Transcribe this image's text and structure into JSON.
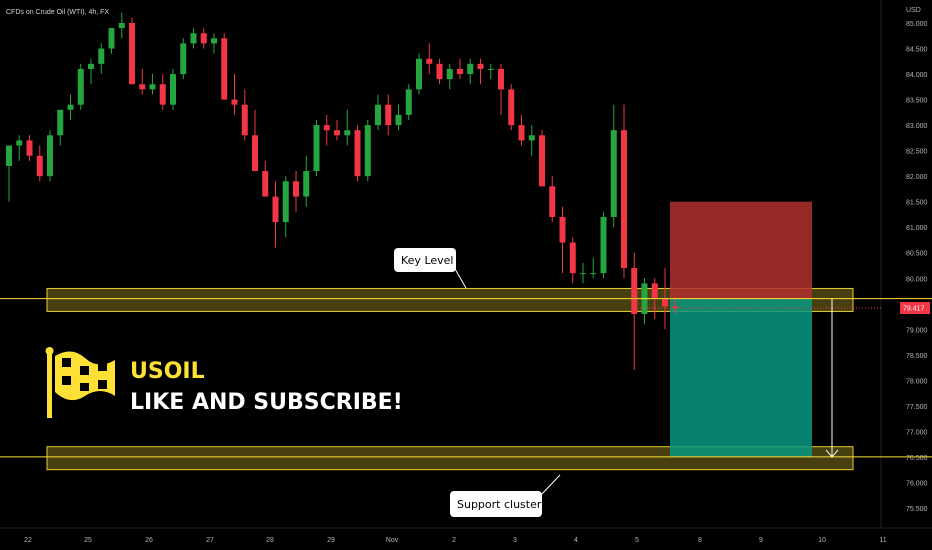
{
  "header": {
    "title": "CFDs on Crude Oil (WTI), 4h, FX"
  },
  "price_axis": {
    "currency": "USD",
    "ticks": [
      "85.000",
      "84.500",
      "84.000",
      "83.500",
      "83.000",
      "82.500",
      "82.000",
      "81.500",
      "81.000",
      "80.500",
      "80.000",
      "79.500",
      "79.000",
      "78.500",
      "78.000",
      "77.500",
      "77.000",
      "76.500",
      "76.000",
      "75.500"
    ]
  },
  "current_price": {
    "label": "79.417",
    "value": 79.417,
    "color": "#f23645"
  },
  "time_axis": {
    "ticks": [
      "22",
      "25",
      "26",
      "27",
      "28",
      "29",
      "Nov",
      "2",
      "3",
      "4",
      "5",
      "8",
      "9",
      "10",
      "11"
    ]
  },
  "annotations": {
    "key_level": "Key Level",
    "support": "Support cluster",
    "brand_title": "USOIL",
    "brand_sub": "LIKE AND SUBSCRIBE!"
  },
  "icons": {
    "brand": "checkered-flag-icon",
    "arrow": "arrow-down-icon"
  },
  "colors": {
    "up": "#089981",
    "up_body": "#26a641",
    "down": "#f23645",
    "zone": "#ffe135",
    "stop": "#b2302e",
    "target": "#089981"
  },
  "chart_data": {
    "type": "candlestick",
    "title": "CFDs on Crude Oil (WTI), 4h, FX",
    "ylim": [
      75.3,
      85.3
    ],
    "key_level_zone": [
      79.35,
      79.8
    ],
    "support_zone": [
      76.25,
      76.7
    ],
    "key_level_line": 79.6,
    "support_line": 76.5,
    "trade": {
      "entry": 79.6,
      "stop": 81.5,
      "target": 76.5
    },
    "candles": [
      [
        82.2,
        82.6,
        81.5,
        82.6
      ],
      [
        82.6,
        82.8,
        82.3,
        82.7
      ],
      [
        82.7,
        82.8,
        82.3,
        82.4
      ],
      [
        82.4,
        82.6,
        81.9,
        82.0
      ],
      [
        82.0,
        82.9,
        81.9,
        82.8
      ],
      [
        82.8,
        83.3,
        82.6,
        83.3
      ],
      [
        83.3,
        83.6,
        83.1,
        83.4
      ],
      [
        83.4,
        84.2,
        83.3,
        84.1
      ],
      [
        84.1,
        84.3,
        83.8,
        84.2
      ],
      [
        84.2,
        84.6,
        84.0,
        84.5
      ],
      [
        84.5,
        84.9,
        84.4,
        84.9
      ],
      [
        84.9,
        85.2,
        84.7,
        85.0
      ],
      [
        85.0,
        85.1,
        83.8,
        83.8
      ],
      [
        83.8,
        84.1,
        83.6,
        83.7
      ],
      [
        83.7,
        84.0,
        83.6,
        83.8
      ],
      [
        83.8,
        84.0,
        83.3,
        83.4
      ],
      [
        83.4,
        84.1,
        83.3,
        84.0
      ],
      [
        84.0,
        84.7,
        83.9,
        84.6
      ],
      [
        84.6,
        84.9,
        84.5,
        84.8
      ],
      [
        84.8,
        84.9,
        84.5,
        84.6
      ],
      [
        84.6,
        84.8,
        84.4,
        84.7
      ],
      [
        84.7,
        84.8,
        83.5,
        83.5
      ],
      [
        83.5,
        84.0,
        83.2,
        83.4
      ],
      [
        83.4,
        83.7,
        82.7,
        82.8
      ],
      [
        82.8,
        83.3,
        82.1,
        82.1
      ],
      [
        82.1,
        82.3,
        81.6,
        81.6
      ],
      [
        81.6,
        81.9,
        80.6,
        81.1
      ],
      [
        81.1,
        82.0,
        80.8,
        81.9
      ],
      [
        81.9,
        82.1,
        81.3,
        81.6
      ],
      [
        81.6,
        82.4,
        81.4,
        82.1
      ],
      [
        82.1,
        83.1,
        82.0,
        83.0
      ],
      [
        83.0,
        83.2,
        82.6,
        82.9
      ],
      [
        82.9,
        83.1,
        82.7,
        82.8
      ],
      [
        82.8,
        83.3,
        82.6,
        82.9
      ],
      [
        82.9,
        83.0,
        81.9,
        82.0
      ],
      [
        82.0,
        83.1,
        81.9,
        83.0
      ],
      [
        83.0,
        83.6,
        82.9,
        83.4
      ],
      [
        83.4,
        83.6,
        82.8,
        83.0
      ],
      [
        83.0,
        83.4,
        82.9,
        83.2
      ],
      [
        83.2,
        83.8,
        83.1,
        83.7
      ],
      [
        83.7,
        84.4,
        83.6,
        84.3
      ],
      [
        84.3,
        84.6,
        84.0,
        84.2
      ],
      [
        84.2,
        84.3,
        83.8,
        83.9
      ],
      [
        83.9,
        84.2,
        83.7,
        84.1
      ],
      [
        84.1,
        84.3,
        83.9,
        84.0
      ],
      [
        84.0,
        84.3,
        83.8,
        84.2
      ],
      [
        84.2,
        84.3,
        83.8,
        84.1
      ],
      [
        84.1,
        84.2,
        83.9,
        84.1
      ],
      [
        84.1,
        84.2,
        83.2,
        83.7
      ],
      [
        83.7,
        83.8,
        82.9,
        83.0
      ],
      [
        83.0,
        83.2,
        82.6,
        82.7
      ],
      [
        82.7,
        83.0,
        82.4,
        82.8
      ],
      [
        82.8,
        82.9,
        81.8,
        81.8
      ],
      [
        81.8,
        82.0,
        81.1,
        81.2
      ],
      [
        81.2,
        81.4,
        80.1,
        80.7
      ],
      [
        80.7,
        80.8,
        79.9,
        80.1
      ],
      [
        80.1,
        80.3,
        79.9,
        80.1
      ],
      [
        80.1,
        80.4,
        80.0,
        80.1
      ],
      [
        80.1,
        81.3,
        80.0,
        81.2
      ],
      [
        81.2,
        83.4,
        81.0,
        82.9
      ],
      [
        82.9,
        83.4,
        80.0,
        80.2
      ],
      [
        80.2,
        80.5,
        78.2,
        79.3
      ],
      [
        79.3,
        80.0,
        79.1,
        79.9
      ],
      [
        79.9,
        80.0,
        79.2,
        79.6
      ],
      [
        79.6,
        80.2,
        79.0,
        79.45
      ],
      [
        79.45,
        79.6,
        79.3,
        79.42
      ]
    ]
  }
}
